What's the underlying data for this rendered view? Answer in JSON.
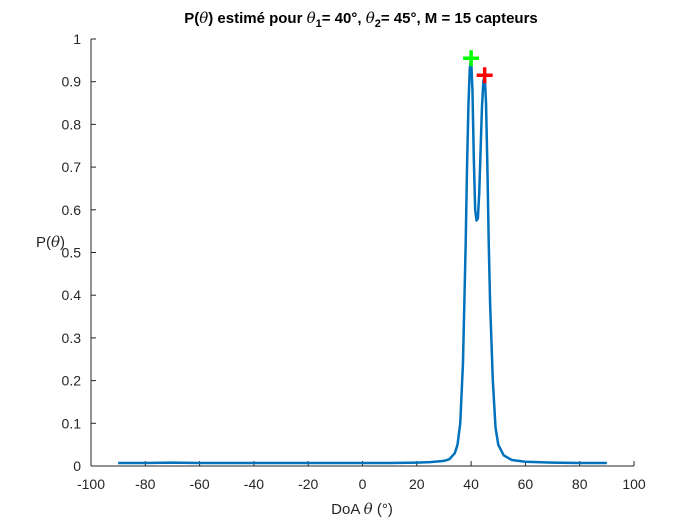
{
  "chart_data": {
    "type": "line",
    "title": {
      "p1": "P(",
      "theta": "θ",
      "p2": ") estimé pour ",
      "sub1": "1",
      "p3": "= 40°, ",
      "sub2": "2",
      "p4": "= 45°, M = 15 capteurs"
    },
    "xlabel": {
      "text": "DoA ",
      "theta": "θ",
      "unit": " (°)"
    },
    "ylabel": {
      "prefix": "P(",
      "theta": "θ",
      "suffix": ")"
    },
    "xlim": [
      -100,
      100
    ],
    "ylim": [
      0,
      1
    ],
    "xticks": [
      -100,
      -80,
      -60,
      -40,
      -20,
      0,
      20,
      40,
      60,
      80,
      100
    ],
    "yticks": [
      0,
      0.1,
      0.2,
      0.3,
      0.4,
      0.5,
      0.6,
      0.7,
      0.8,
      0.9,
      1
    ],
    "grid": false,
    "series": [
      {
        "color": "#0072BD",
        "x": [
          -90,
          -80,
          -70,
          -60,
          -50,
          -40,
          -30,
          -20,
          -10,
          0,
          10,
          20,
          25,
          30,
          32,
          34,
          35,
          36,
          37,
          38,
          38.5,
          39,
          39.5,
          40,
          40.5,
          41,
          41.5,
          42,
          42.5,
          43,
          43.5,
          44,
          44.5,
          45,
          45.5,
          46,
          46.5,
          47,
          48,
          49,
          50,
          52,
          55,
          60,
          70,
          80,
          90
        ],
        "y": [
          0.007,
          0.007,
          0.008,
          0.007,
          0.007,
          0.007,
          0.007,
          0.007,
          0.007,
          0.007,
          0.007,
          0.008,
          0.009,
          0.012,
          0.016,
          0.03,
          0.05,
          0.1,
          0.24,
          0.52,
          0.7,
          0.84,
          0.93,
          0.955,
          0.88,
          0.72,
          0.6,
          0.575,
          0.58,
          0.64,
          0.74,
          0.84,
          0.9,
          0.915,
          0.85,
          0.7,
          0.52,
          0.38,
          0.2,
          0.09,
          0.05,
          0.025,
          0.014,
          0.01,
          0.008,
          0.007,
          0.007
        ]
      }
    ],
    "markers": [
      {
        "x": 40,
        "y": 0.955,
        "color": "#00FF00",
        "symbol": "+"
      },
      {
        "x": 45,
        "y": 0.915,
        "color": "#FF0000",
        "symbol": "+"
      }
    ]
  }
}
